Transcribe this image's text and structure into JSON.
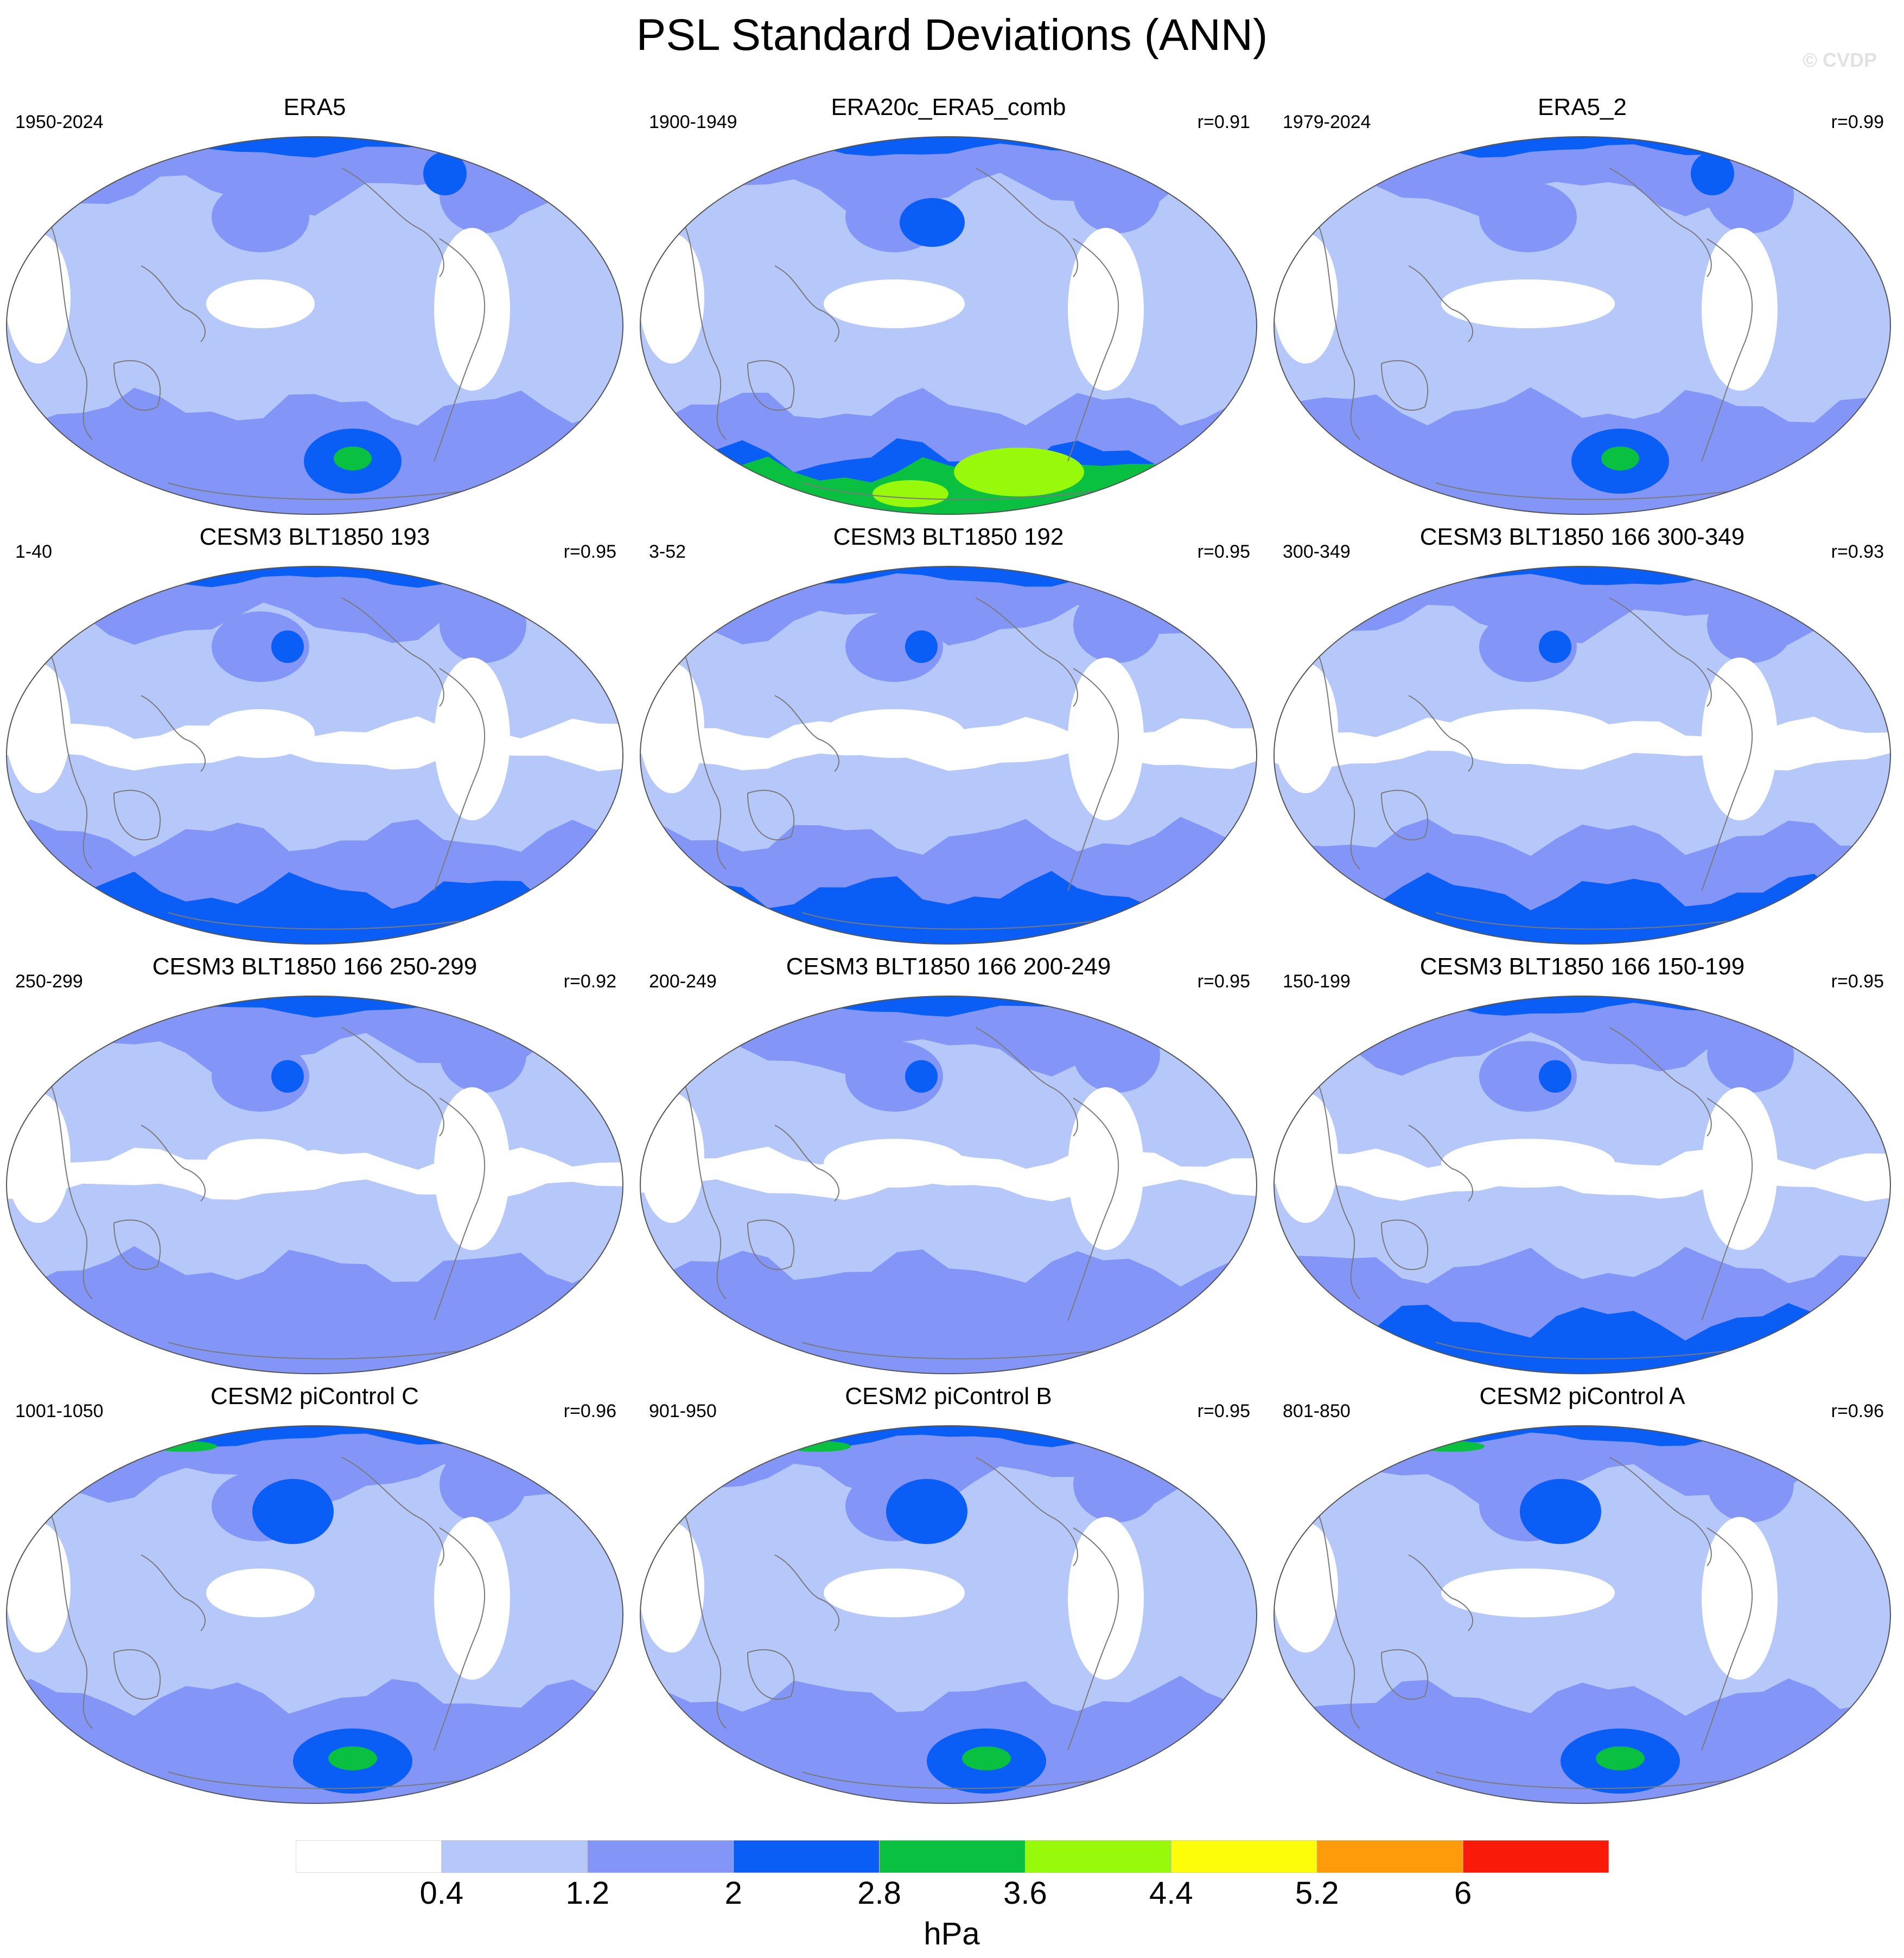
{
  "title": "PSL Standard Deviations (ANN)",
  "watermark": "© CVDP",
  "colorbar": {
    "labels": [
      "0.4",
      "1.2",
      "2",
      "2.8",
      "3.6",
      "4.4",
      "5.2",
      "6"
    ],
    "units": "hPa",
    "colors": [
      "#ffffff",
      "#b6c8fa",
      "#8396f7",
      "#0a5ef5",
      "#09c040",
      "#98fa0a",
      "#fdfd0a",
      "#fd9b0a",
      "#fa1a0a"
    ]
  },
  "panels": [
    {
      "title": "ERA5",
      "left": "1950-2024",
      "right": "",
      "variant": "era"
    },
    {
      "title": "ERA20c_ERA5_comb",
      "left": "1900-1949",
      "right": "r=0.91",
      "variant": "era20"
    },
    {
      "title": "ERA5_2",
      "left": "1979-2024",
      "right": "r=0.99",
      "variant": "era"
    },
    {
      "title": "CESM3 BLT1850 193",
      "left": "1-40",
      "right": "r=0.95",
      "variant": "blt"
    },
    {
      "title": "CESM3 BLT1850 192",
      "left": "3-52",
      "right": "r=0.95",
      "variant": "blt"
    },
    {
      "title": "CESM3 BLT1850 166 300-349",
      "left": "300-349",
      "right": "r=0.93",
      "variant": "blt"
    },
    {
      "title": "CESM3 BLT1850 166 250-299",
      "left": "250-299",
      "right": "r=0.92",
      "variant": "blt2"
    },
    {
      "title": "CESM3 BLT1850 166 200-249",
      "left": "200-249",
      "right": "r=0.95",
      "variant": "blt2"
    },
    {
      "title": "CESM3 BLT1850 166 150-199",
      "left": "150-199",
      "right": "r=0.95",
      "variant": "blt"
    },
    {
      "title": "CESM2 piControl C",
      "left": "1001-1050",
      "right": "r=0.96",
      "variant": "pic"
    },
    {
      "title": "CESM2 piControl B",
      "left": "901-950",
      "right": "r=0.95",
      "variant": "pic"
    },
    {
      "title": "CESM2 piControl A",
      "left": "801-850",
      "right": "r=0.96",
      "variant": "pic"
    }
  ]
}
